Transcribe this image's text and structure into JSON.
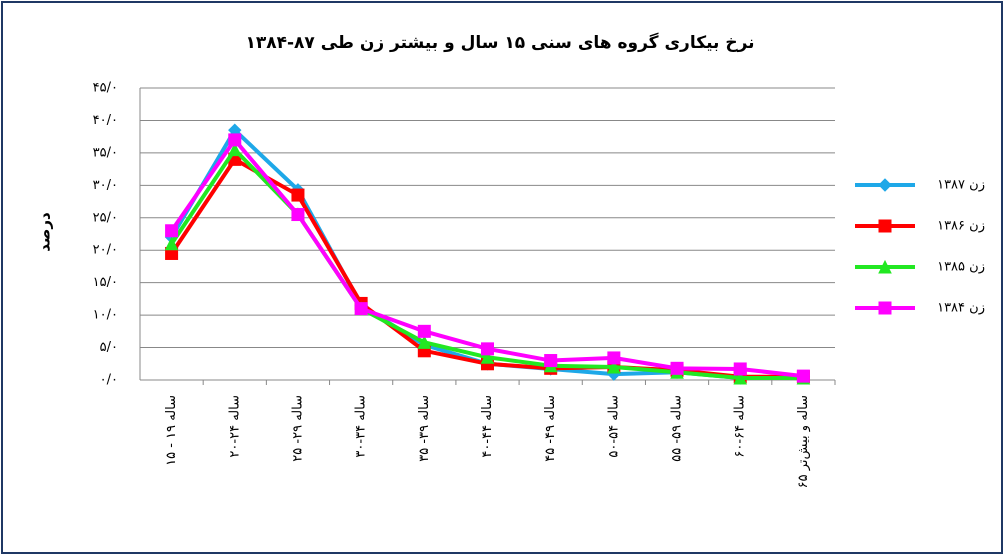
{
  "chart_data": {
    "type": "line",
    "title": "نرخ بیکاری گروه های سنی ۱۵ سال و بیشتر زن طی ۸۷-۱۳۸۴",
    "y_label": "درصد",
    "categories": [
      "۱۵ - ۱۹ ساله",
      "۲۰-۲۴ ساله",
      "۲۵ -۲۹ ساله",
      "۳۰-۳۴ ساله",
      "۳۵ -۳۹ ساله",
      "۴۰-۴۴ ساله",
      "۴۵ -۴۹ ساله",
      "۵۰-۵۴ ساله",
      "۵۵ -۵۹ ساله",
      "۶۰-۶۴ ساله",
      "۶۵ ساله و بیش‌تر"
    ],
    "series": [
      {
        "name": "زن ۱۳۸۷",
        "color": "#1ea8e8",
        "marker": "diamond",
        "values": [
          22,
          38.5,
          29.3,
          11.5,
          5.4,
          2.5,
          1.7,
          0.9,
          1.2,
          0.3,
          0.5
        ]
      },
      {
        "name": "زن ۱۳۸۶",
        "color": "#ff0000",
        "marker": "square",
        "values": [
          19.5,
          34,
          28.5,
          11.8,
          4.5,
          2.5,
          1.8,
          2,
          1.5,
          0.5,
          0.5
        ]
      },
      {
        "name": "زن ۱۳۸۵",
        "color": "#22e822",
        "marker": "triangle",
        "values": [
          21,
          35.5,
          25.5,
          11,
          5.8,
          3.5,
          2.2,
          2,
          1.2,
          0.3,
          0.3
        ]
      },
      {
        "name": "زن ۱۳۸۴",
        "color": "#ff00ff",
        "marker": "square",
        "values": [
          23,
          37,
          25.5,
          11,
          7.5,
          4.8,
          3,
          3.4,
          1.8,
          1.7,
          0.6
        ]
      }
    ],
    "ylim": [
      0,
      45
    ],
    "yticks": [
      {
        "value": 0,
        "label": "۰/۰"
      },
      {
        "value": 5,
        "label": "۵/۰"
      },
      {
        "value": 10,
        "label": "۱۰/۰"
      },
      {
        "value": 15,
        "label": "۱۵/۰"
      },
      {
        "value": 20,
        "label": "۲۰/۰"
      },
      {
        "value": 25,
        "label": "۲۵/۰"
      },
      {
        "value": 30,
        "label": "۳۰/۰"
      },
      {
        "value": 35,
        "label": "۳۵/۰"
      },
      {
        "value": 40,
        "label": "۴۰/۰"
      },
      {
        "value": 45,
        "label": "۴۵/۰"
      }
    ],
    "grid": true,
    "legend": "right"
  }
}
